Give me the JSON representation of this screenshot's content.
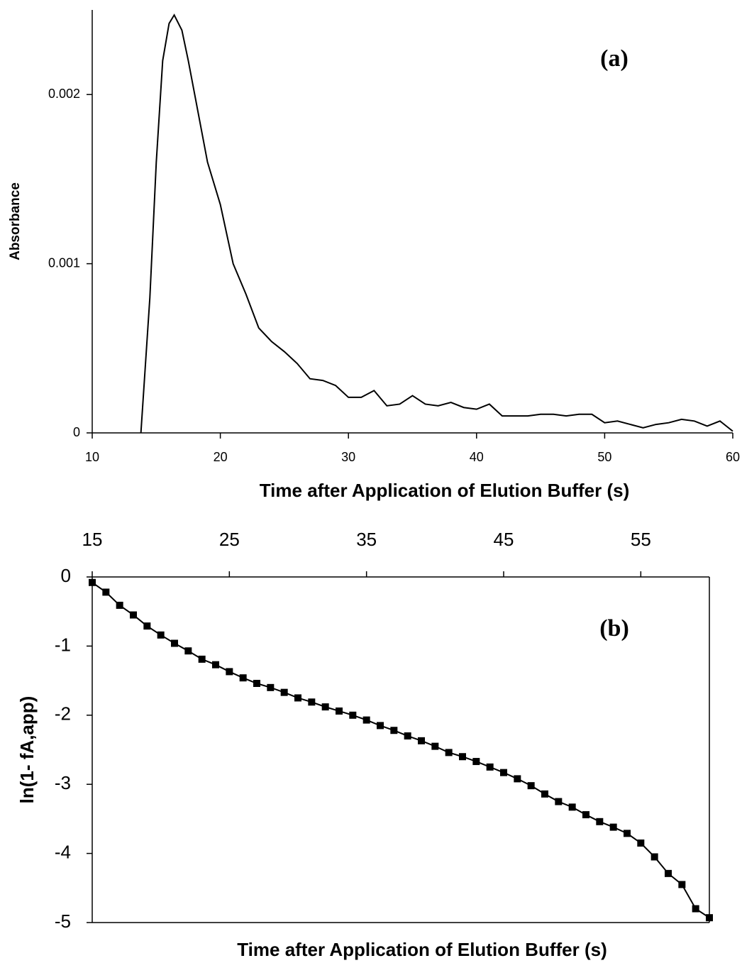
{
  "chart_data": [
    {
      "type": "line",
      "x_label": "Time after Application of Elution Buffer (s)",
      "y_label": "Absorbance",
      "annotation": "(a)",
      "x": [
        13.8,
        14.5,
        15,
        15.5,
        16,
        16.4,
        17,
        17.5,
        18,
        19,
        20,
        21,
        22,
        23,
        24,
        25,
        26,
        27,
        28,
        29,
        30,
        31,
        32,
        33,
        34,
        35,
        36,
        37,
        38,
        39,
        40,
        41,
        42,
        43,
        44,
        45,
        46,
        47,
        48,
        49,
        50,
        51,
        52,
        53,
        54,
        55,
        56,
        57,
        58,
        59,
        60
      ],
      "series": [
        {
          "color": "#000000",
          "values": [
            0,
            0.0008,
            0.0016,
            0.0022,
            0.00242,
            0.00247,
            0.00238,
            0.0022,
            0.002,
            0.0016,
            0.00135,
            0.001,
            0.00082,
            0.00062,
            0.00054,
            0.00048,
            0.00041,
            0.00032,
            0.00031,
            0.00028,
            0.00021,
            0.00021,
            0.00025,
            0.00016,
            0.00017,
            0.00022,
            0.00017,
            0.00016,
            0.00018,
            0.00015,
            0.00014,
            0.00017,
            0.0001,
            0.0001,
            0.0001,
            0.00011,
            0.00011,
            0.0001,
            0.00011,
            0.00011,
            6e-05,
            7e-05,
            5e-05,
            3e-05,
            5e-05,
            6e-05,
            8e-05,
            7e-05,
            4e-05,
            7e-05,
            1e-05
          ]
        }
      ],
      "xlim": [
        10,
        60
      ],
      "xticks": [
        10,
        20,
        30,
        40,
        50,
        60
      ],
      "ylim": [
        0,
        0.0025
      ],
      "yticks": [
        0,
        0.001,
        0.002
      ],
      "grid": false,
      "x_axis_position": "bottom",
      "marker": "none",
      "box": false
    },
    {
      "type": "line",
      "x_label": "Time after Application of Elution Buffer (s)",
      "y_label": "ln(1- fA,app)",
      "annotation": "(b)",
      "x": [
        15,
        16,
        17,
        18,
        19,
        20,
        21,
        22,
        23,
        24,
        25,
        26,
        27,
        28,
        29,
        30,
        31,
        32,
        33,
        34,
        35,
        36,
        37,
        38,
        39,
        40,
        41,
        42,
        43,
        44,
        45,
        46,
        47,
        48,
        49,
        50,
        51,
        52,
        53,
        54,
        55,
        56,
        57,
        58,
        59,
        60
      ],
      "series": [
        {
          "color": "#000000",
          "values": [
            -0.08,
            -0.22,
            -0.41,
            -0.55,
            -0.71,
            -0.84,
            -0.96,
            -1.07,
            -1.19,
            -1.27,
            -1.37,
            -1.46,
            -1.54,
            -1.6,
            -1.67,
            -1.75,
            -1.81,
            -1.88,
            -1.94,
            -2,
            -2.07,
            -2.15,
            -2.22,
            -2.3,
            -2.37,
            -2.45,
            -2.54,
            -2.6,
            -2.67,
            -2.75,
            -2.83,
            -2.92,
            -3.02,
            -3.14,
            -3.25,
            -3.33,
            -3.44,
            -3.54,
            -3.62,
            -3.71,
            -3.85,
            -4.05,
            -4.29,
            -4.45,
            -4.8,
            -4.93
          ]
        }
      ],
      "xlim": [
        15,
        60
      ],
      "xticks": [
        15,
        25,
        35,
        45,
        55
      ],
      "ylim": [
        -5,
        0
      ],
      "yticks": [
        0,
        -1,
        -2,
        -3,
        -4,
        -5
      ],
      "grid": false,
      "x_axis_position": "top",
      "marker": "square",
      "box": true
    }
  ]
}
